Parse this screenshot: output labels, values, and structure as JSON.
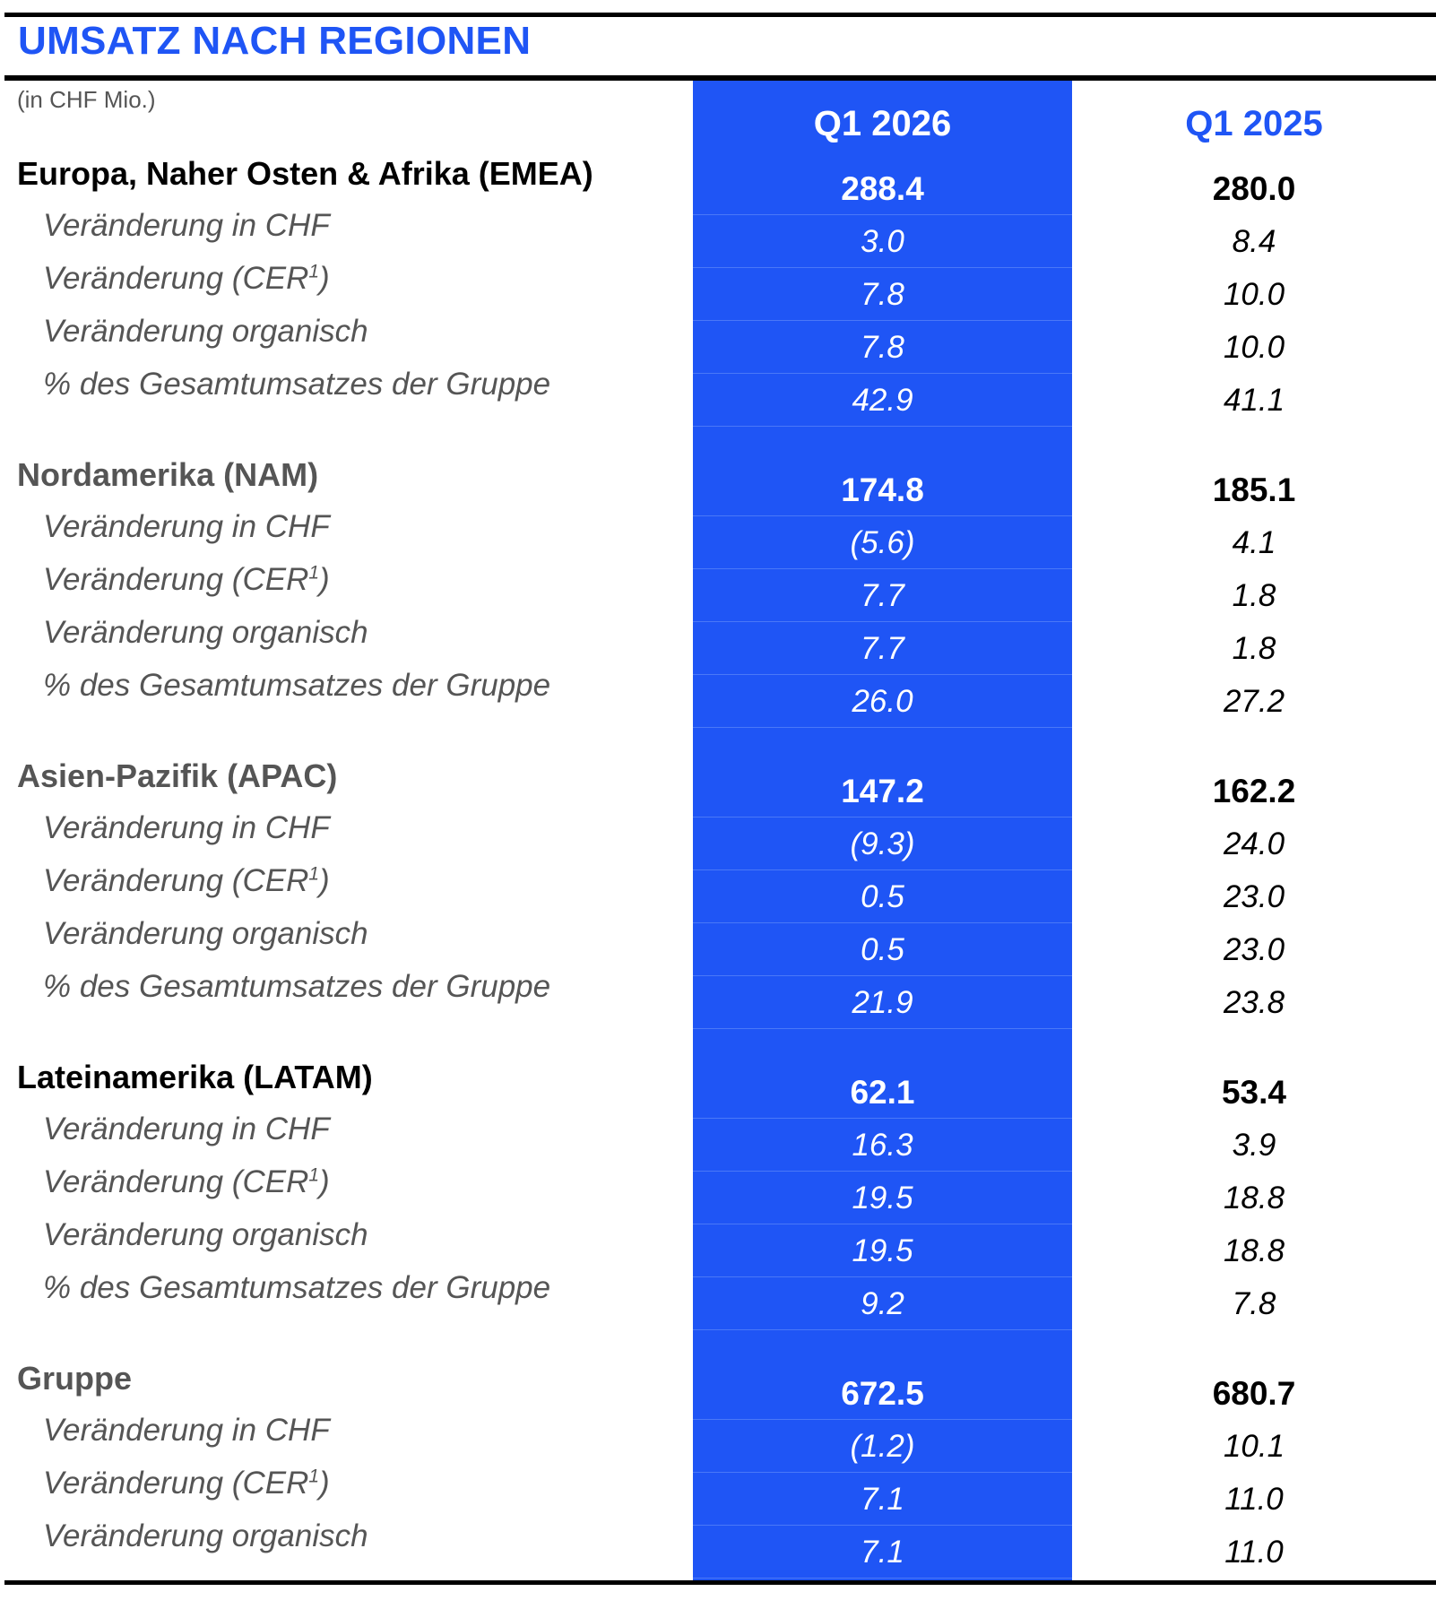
{
  "title": "UMSATZ NACH REGIONEN",
  "unit": "(in CHF Mio.)",
  "columns": [
    "Q1 2026",
    "Q1 2025"
  ],
  "colors": {
    "accent_blue": "#1f55f5",
    "label_grey": "#555555",
    "rule": "#000000"
  },
  "sections": [
    {
      "name": "Europa, Naher Osten & Afrika (EMEA)",
      "name_color": "#000000",
      "total": [
        "288.4",
        "280.0"
      ],
      "rows": [
        {
          "label": "Veränderung in CHF",
          "values": [
            "3.0",
            "8.4"
          ]
        },
        {
          "label": "Veränderung (CER",
          "sup": "1",
          "suffix": ")",
          "values": [
            "7.8",
            "10.0"
          ]
        },
        {
          "label": "Veränderung organisch",
          "values": [
            "7.8",
            "10.0"
          ]
        },
        {
          "label": "% des Gesamtumsatzes der Gruppe",
          "values": [
            "42.9",
            "41.1"
          ]
        }
      ]
    },
    {
      "name": "Nordamerika (NAM)",
      "name_color": "#555555",
      "total": [
        "174.8",
        "185.1"
      ],
      "rows": [
        {
          "label": "Veränderung in CHF",
          "values": [
            "(5.6)",
            "4.1"
          ]
        },
        {
          "label": "Veränderung (CER",
          "sup": "1",
          "suffix": ")",
          "values": [
            "7.7",
            "1.8"
          ]
        },
        {
          "label": "Veränderung organisch",
          "values": [
            "7.7",
            "1.8"
          ]
        },
        {
          "label": "% des Gesamtumsatzes der Gruppe",
          "values": [
            "26.0",
            "27.2"
          ]
        }
      ]
    },
    {
      "name": "Asien-Pazifik (APAC)",
      "name_color": "#555555",
      "total": [
        "147.2",
        "162.2"
      ],
      "rows": [
        {
          "label": "Veränderung in CHF",
          "values": [
            "(9.3)",
            "24.0"
          ]
        },
        {
          "label": "Veränderung (CER",
          "sup": "1",
          "suffix": ")",
          "values": [
            "0.5",
            "23.0"
          ]
        },
        {
          "label": "Veränderung organisch",
          "values": [
            "0.5",
            "23.0"
          ]
        },
        {
          "label": "% des Gesamtumsatzes der Gruppe",
          "values": [
            "21.9",
            "23.8"
          ]
        }
      ]
    },
    {
      "name": "Lateinamerika (LATAM)",
      "name_color": "#000000",
      "total": [
        "62.1",
        "53.4"
      ],
      "rows": [
        {
          "label": "Veränderung in CHF",
          "values": [
            "16.3",
            "3.9"
          ]
        },
        {
          "label": "Veränderung (CER",
          "sup": "1",
          "suffix": ")",
          "values": [
            "19.5",
            "18.8"
          ]
        },
        {
          "label": "Veränderung organisch",
          "values": [
            "19.5",
            "18.8"
          ]
        },
        {
          "label": "% des Gesamtumsatzes der Gruppe",
          "values": [
            "9.2",
            "7.8"
          ]
        }
      ]
    },
    {
      "name": "Gruppe",
      "name_color": "#555555",
      "total": [
        "672.5",
        "680.7"
      ],
      "rows": [
        {
          "label": "Veränderung in CHF",
          "values": [
            "(1.2)",
            "10.1"
          ]
        },
        {
          "label": "Veränderung (CER",
          "sup": "1",
          "suffix": ")",
          "values": [
            "7.1",
            "11.0"
          ]
        },
        {
          "label": "Veränderung organisch",
          "values": [
            "7.1",
            "11.0"
          ]
        }
      ]
    }
  ]
}
